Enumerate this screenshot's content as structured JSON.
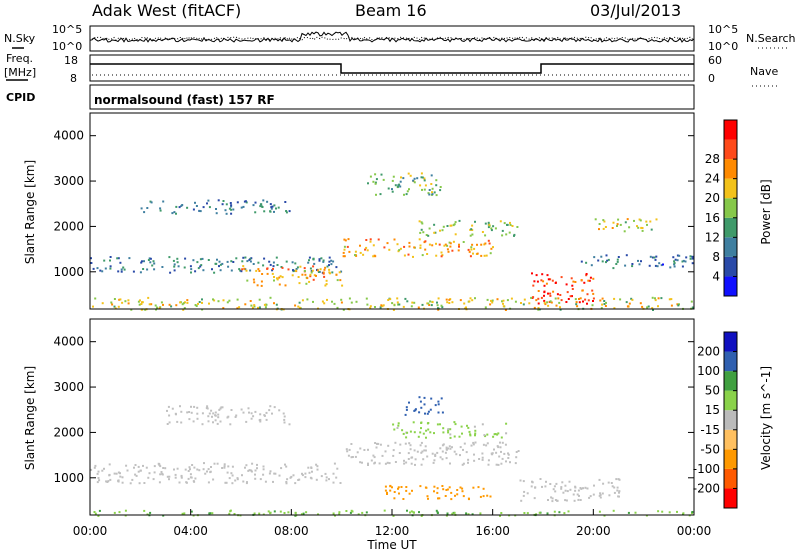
{
  "header": {
    "station": "Adak West (fitACF)",
    "beam": "Beam 16",
    "date": "03/Jul/2013"
  },
  "noise_panel": {
    "left_label_1": "N.Sky",
    "right_label_1": "N.Search",
    "tick_top": "10^5",
    "tick_bottom": "10^0"
  },
  "freq_panel": {
    "left_label_1": "Freq.",
    "left_label_2": "[MHz]",
    "left_tick_top": "18",
    "left_tick_bottom": "8",
    "right_label": "Nave",
    "right_tick_top": "60",
    "right_tick_bottom": "0"
  },
  "cpid_panel": {
    "label": "CPID",
    "mode_text": "normalsound (fast) 157 RF"
  },
  "colors": {
    "power_scale": [
      "#1010ff",
      "#2a4aa8",
      "#3f7fa0",
      "#3f9a6a",
      "#86c84a",
      "#f3c21a",
      "#ff8a00",
      "#ff4a1a",
      "#ff0000"
    ],
    "velocity_scale": [
      "#ff0000",
      "#ff5a00",
      "#ff9900",
      "#ffc060",
      "#bbbbbb",
      "#8ad24a",
      "#40a040",
      "#3060b0",
      "#1010c0"
    ],
    "ground_scatter": "#c0c0c0"
  },
  "chart_data": [
    {
      "type": "heatmap",
      "title": "",
      "xlabel": "",
      "ylabel": "Slant Range [km]",
      "xlim": [
        0,
        24
      ],
      "ylim": [
        180,
        4500
      ],
      "x_ticks": [],
      "y_ticks": [
        "1000",
        "2000",
        "3000",
        "4000"
      ],
      "colorbar": {
        "label": "Power [dB]",
        "ticks": [
          "4",
          "8",
          "12",
          "16",
          "20",
          "24",
          "28"
        ],
        "range": [
          0,
          32
        ]
      },
      "features": [
        {
          "t0": 0.0,
          "t1": 10.0,
          "r0": 1000,
          "r1": 1350,
          "level": 9
        },
        {
          "t0": 6.0,
          "t1": 10.0,
          "r0": 700,
          "r1": 1150,
          "level": 22
        },
        {
          "t0": 10.0,
          "t1": 16.0,
          "r0": 1350,
          "r1": 1750,
          "level": 22
        },
        {
          "t0": 13.0,
          "t1": 17.0,
          "r0": 1800,
          "r1": 2150,
          "level": 16
        },
        {
          "t0": 2.0,
          "t1": 8.0,
          "r0": 2300,
          "r1": 2600,
          "level": 9
        },
        {
          "t0": 17.5,
          "t1": 20.0,
          "r0": 300,
          "r1": 1000,
          "level": 28
        },
        {
          "t0": 19.5,
          "t1": 24.0,
          "r0": 1100,
          "r1": 1400,
          "level": 8
        },
        {
          "t0": 11.0,
          "t1": 14.0,
          "r0": 2700,
          "r1": 3200,
          "level": 14
        },
        {
          "t0": 20.0,
          "t1": 22.5,
          "r0": 1900,
          "r1": 2200,
          "level": 18
        },
        {
          "t0": 0.0,
          "t1": 24.0,
          "r0": 180,
          "r1": 450,
          "level": 18
        }
      ]
    },
    {
      "type": "heatmap",
      "title": "",
      "xlabel": "Time UT",
      "ylabel": "Slant Range [km]",
      "xlim": [
        0,
        24
      ],
      "ylim": [
        180,
        4500
      ],
      "x_ticks": [
        "00:00",
        "04:00",
        "08:00",
        "12:00",
        "16:00",
        "20:00",
        "00:00"
      ],
      "y_ticks": [
        "1000",
        "2000",
        "3000",
        "4000"
      ],
      "colorbar": {
        "label": "Velocity [m s^-1]",
        "ticks": [
          "-200",
          "-100",
          "-50",
          "-15",
          "15",
          "50",
          "100",
          "200"
        ],
        "range": [
          -250,
          250
        ]
      },
      "features": [
        {
          "t0": 0.0,
          "t1": 10.0,
          "r0": 900,
          "r1": 1350,
          "velocity": 0
        },
        {
          "t0": 10.0,
          "t1": 17.0,
          "r0": 1300,
          "r1": 1800,
          "velocity": 0
        },
        {
          "t0": 3.0,
          "t1": 8.0,
          "r0": 2200,
          "r1": 2600,
          "velocity": 0
        },
        {
          "t0": 12.0,
          "t1": 16.5,
          "r0": 1900,
          "r1": 2250,
          "velocity": 30
        },
        {
          "t0": 11.5,
          "t1": 16.0,
          "r0": 550,
          "r1": 850,
          "velocity": -80
        },
        {
          "t0": 17.0,
          "t1": 21.0,
          "r0": 500,
          "r1": 1000,
          "velocity": 0
        },
        {
          "t0": 12.5,
          "t1": 14.0,
          "r0": 2400,
          "r1": 2800,
          "velocity": 150
        },
        {
          "t0": 0.0,
          "t1": 24.0,
          "r0": 180,
          "r1": 300,
          "velocity": 40
        }
      ]
    }
  ]
}
